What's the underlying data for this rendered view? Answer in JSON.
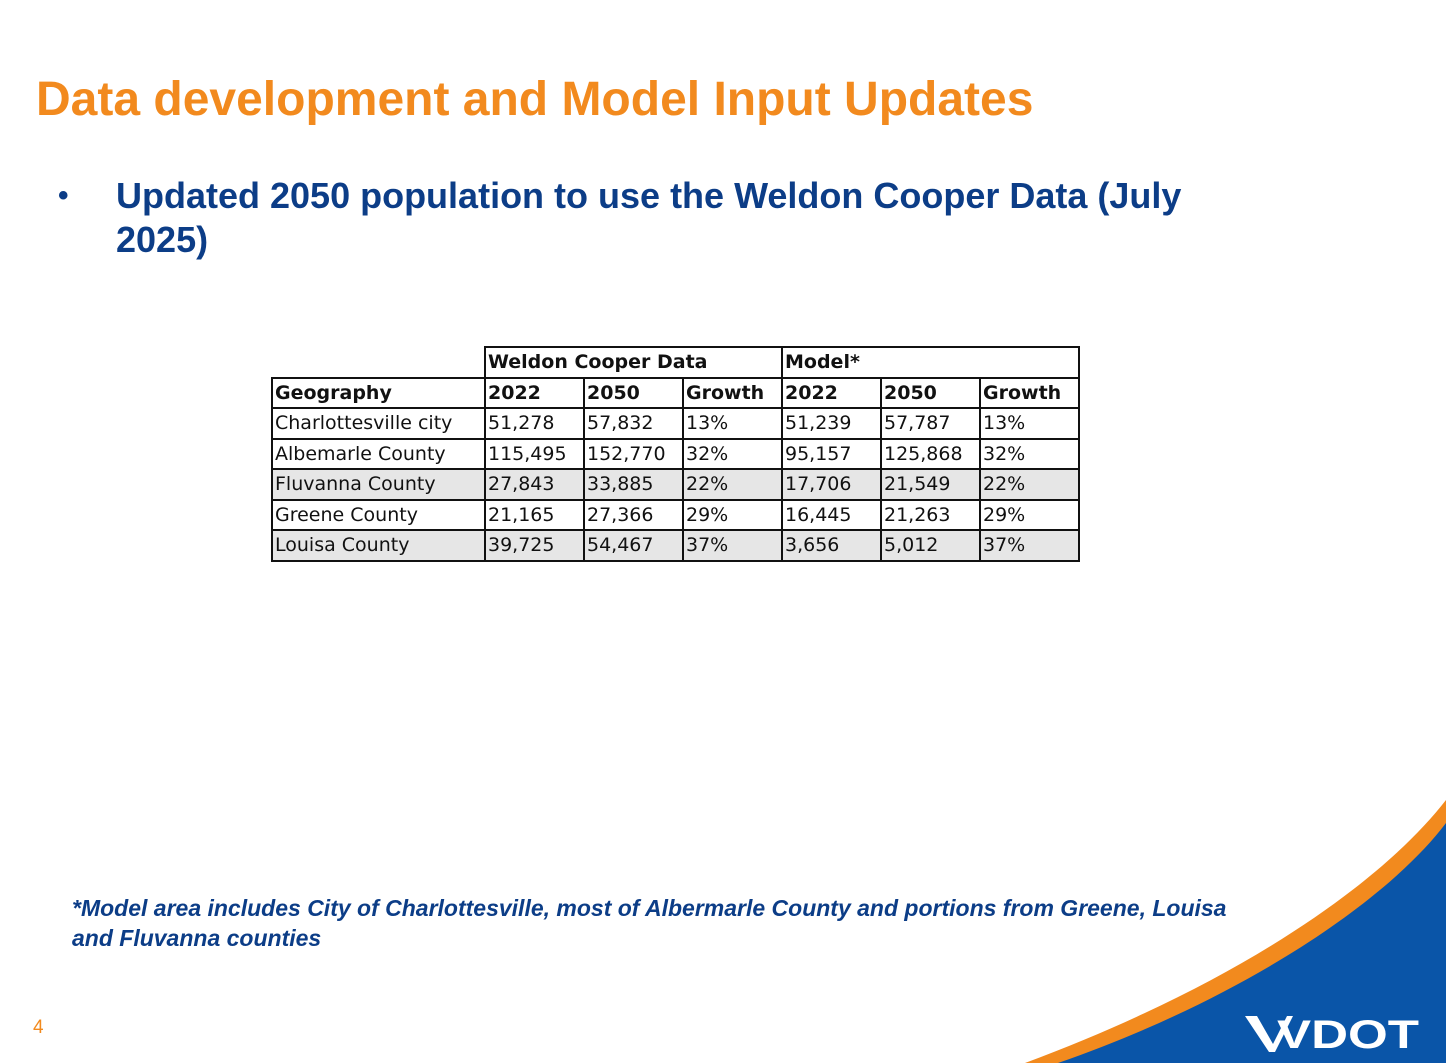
{
  "slide": {
    "title": "Data development and Model Input Updates",
    "bullet_symbol": "•",
    "bullet_text": "Updated 2050 population to use the Weldon Cooper Data (July 2025)",
    "footnote": "*Model area includes City of Charlottesville, most of Albermarle County and portions from Greene, Louisa and Fluvanna counties",
    "page_number": "4",
    "logo_text": "VDOT"
  },
  "table": {
    "group_headers": [
      "Weldon Cooper Data",
      "Model*"
    ],
    "columns": [
      "Geography",
      "2022",
      "2050",
      "Growth",
      "2022",
      "2050",
      "Growth"
    ],
    "rows": [
      [
        "Charlottesville city",
        "51,278",
        "57,832",
        "13%",
        "51,239",
        "57,787",
        "13%"
      ],
      [
        "Albemarle County",
        "115,495",
        "152,770",
        "32%",
        "95,157",
        "125,868",
        "32%"
      ],
      [
        "Fluvanna County",
        "27,843",
        "33,885",
        "22%",
        "17,706",
        "21,549",
        "22%"
      ],
      [
        "Greene County",
        "21,165",
        "27,366",
        "29%",
        "16,445",
        "21,263",
        "29%"
      ],
      [
        "Louisa County",
        "39,725",
        "54,467",
        "37%",
        "3,656",
        "5,012",
        "37%"
      ]
    ]
  },
  "colors": {
    "accent_orange": "#f28a1e",
    "navy": "#0c3d87",
    "brand_blue": "#0a4fa3",
    "row_shade": "#e6e6e6"
  }
}
